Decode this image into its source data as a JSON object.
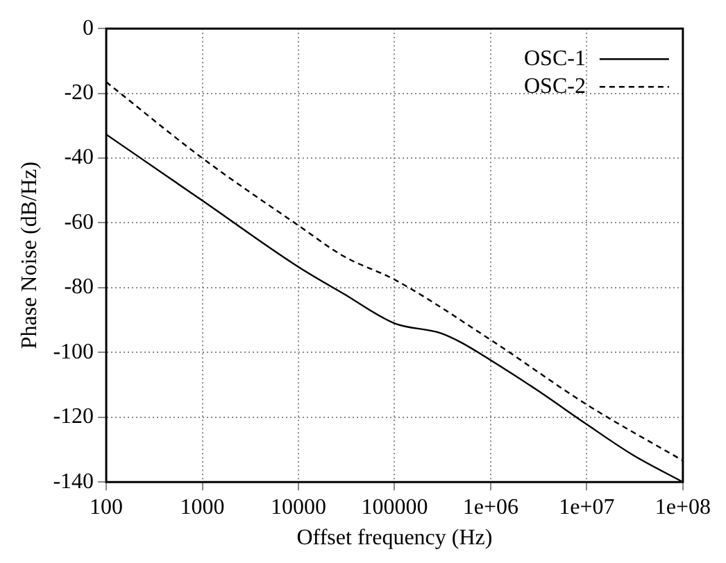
{
  "chart_data": {
    "type": "line",
    "xlabel": "Offset frequency (Hz)",
    "ylabel": "Phase Noise (dB/Hz)",
    "log": "x",
    "grid": true,
    "legend": "top right",
    "marker": "none",
    "xlim": [
      100,
      100000000
    ],
    "xticks": [
      100,
      1000,
      10000,
      100000,
      {
        "value": 1000000,
        "label": "1e+06"
      },
      {
        "value": 10000000,
        "label": "1e+07"
      },
      {
        "value": 100000000,
        "label": "1e+08"
      }
    ],
    "ylim": [
      -140,
      0
    ],
    "yticks": [
      -140,
      -120,
      -100,
      -80,
      -60,
      -40,
      -20,
      0
    ],
    "series": [
      {
        "name": "OSC-1",
        "color": "#000000",
        "line_style": "solid",
        "x": [
          100,
          1000,
          10000,
          30000,
          100000,
          300000,
          500000,
          1000000,
          3000000,
          10000000,
          30000000,
          100000000
        ],
        "values": [
          -32.7,
          -53.1,
          -73.6,
          -82,
          -91,
          -94,
          -97,
          -102.4,
          -111.5,
          -122.2,
          -131.6,
          -140
        ]
      },
      {
        "name": "OSC-2",
        "color": "#000000",
        "line_style": "dashed",
        "x": [
          100,
          1000,
          10000,
          30000,
          100000,
          1000000,
          10000000,
          100000000
        ],
        "values": [
          -16.5,
          -40,
          -60.8,
          -70.4,
          -77.5,
          -96.1,
          -116.1,
          -133.4
        ]
      }
    ]
  }
}
